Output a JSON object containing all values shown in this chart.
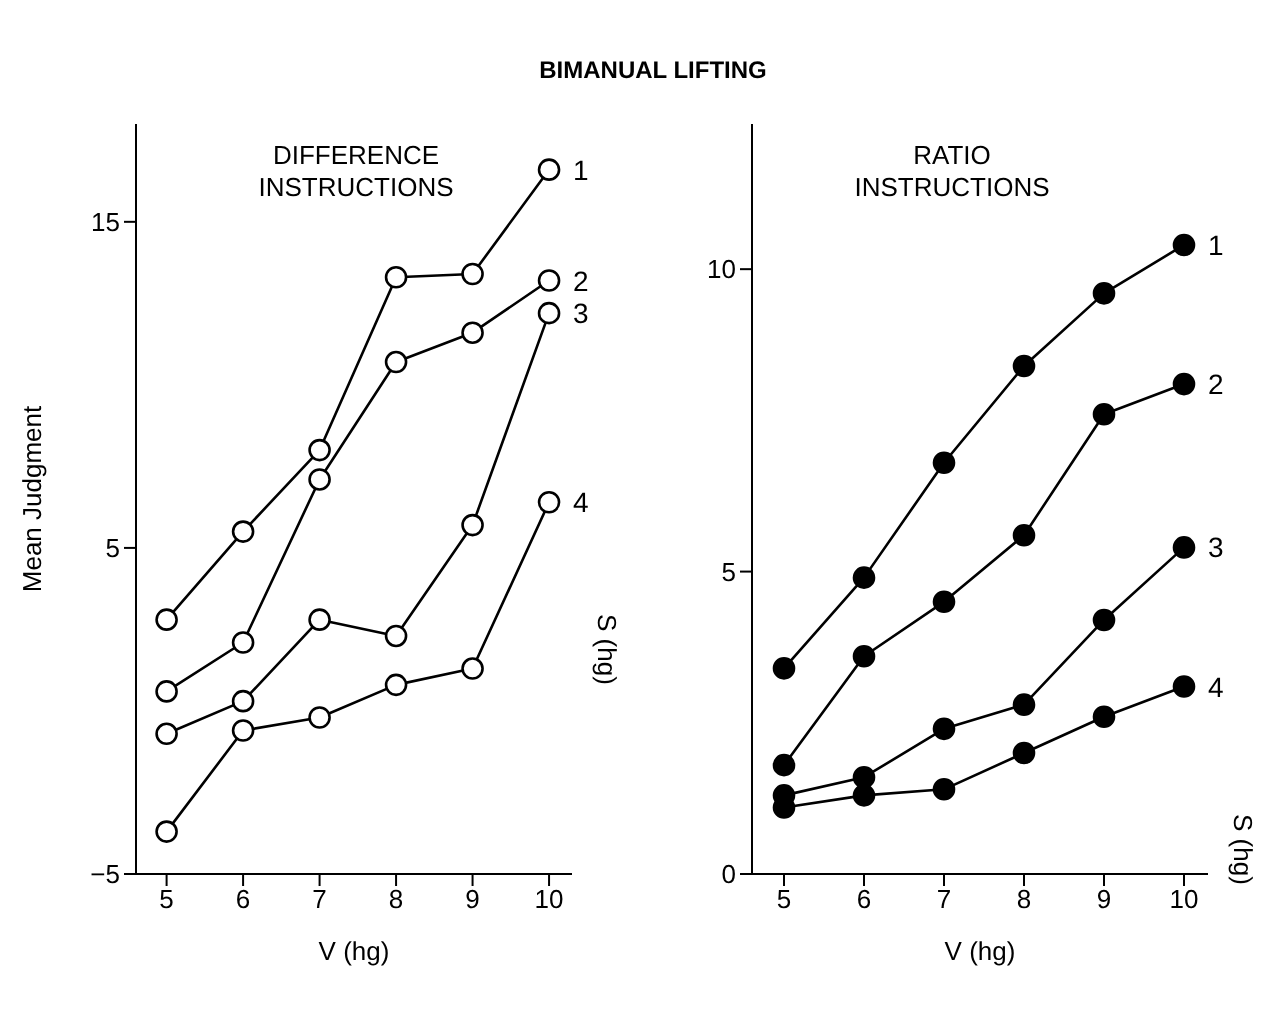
{
  "chart_data": [
    {
      "type": "line",
      "title": "BIMANUAL LIFTING",
      "subtitle": "DIFFERENCE INSTRUCTIONS",
      "xlabel": "V (hg)",
      "ylabel": "Mean Judgment",
      "legend_title": "S (hg)",
      "x": [
        5,
        6,
        7,
        8,
        9,
        10
      ],
      "xlim": [
        4.6,
        10.3
      ],
      "xticks": [
        5,
        6,
        7,
        8,
        9,
        10
      ],
      "ylim": [
        -5,
        18
      ],
      "yticks": [
        -5,
        5,
        15
      ],
      "marker": "circle",
      "grid": false,
      "legend": false,
      "series": [
        {
          "name": "1",
          "color": "#000000",
          "values": [
            2.8,
            5.5,
            8.0,
            13.3,
            13.4,
            16.6
          ]
        },
        {
          "name": "2",
          "color": "#000000",
          "values": [
            0.6,
            2.1,
            7.1,
            10.7,
            11.6,
            13.2
          ]
        },
        {
          "name": "3",
          "color": "#000000",
          "values": [
            -0.7,
            0.3,
            2.8,
            2.3,
            5.7,
            12.2
          ]
        },
        {
          "name": "4",
          "color": "#000000",
          "values": [
            -3.7,
            -0.6,
            -0.2,
            0.8,
            1.3,
            6.4
          ]
        }
      ]
    },
    {
      "type": "line",
      "subtitle": "RATIO INSTRUCTIONS",
      "xlabel": "V (hg)",
      "legend_title": "S (hg)",
      "x": [
        5,
        6,
        7,
        8,
        9,
        10
      ],
      "xlim": [
        4.6,
        10.3
      ],
      "xticks": [
        5,
        6,
        7,
        8,
        9,
        10
      ],
      "ylim": [
        0,
        12.4
      ],
      "yticks": [
        0,
        5,
        10
      ],
      "marker": "circle",
      "grid": false,
      "legend": false,
      "series": [
        {
          "name": "1",
          "color": "#000000",
          "values": [
            3.4,
            4.9,
            6.8,
            8.4,
            9.6,
            10.4
          ]
        },
        {
          "name": "2",
          "color": "#000000",
          "values": [
            1.8,
            3.6,
            4.5,
            5.6,
            7.6,
            8.1
          ]
        },
        {
          "name": "3",
          "color": "#000000",
          "values": [
            1.3,
            1.6,
            2.4,
            2.8,
            4.2,
            5.4
          ]
        },
        {
          "name": "4",
          "color": "#000000",
          "values": [
            1.1,
            1.3,
            1.4,
            2.0,
            2.6,
            3.1
          ]
        }
      ]
    }
  ]
}
